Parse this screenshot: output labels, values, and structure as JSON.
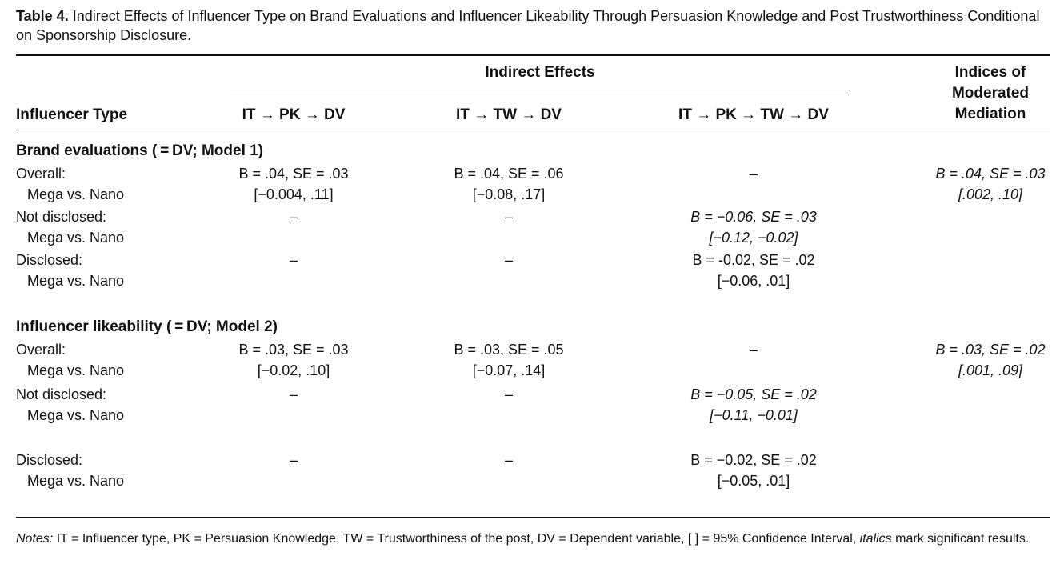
{
  "caption": {
    "label": "Table 4.",
    "text": "Indirect Effects of Influencer Type on Brand Evaluations and Influencer Likeability Through Persuasion Knowledge and Post Trustworthiness Conditional on Sponsorship Disclosure."
  },
  "header": {
    "group_label": "Indirect Effects",
    "row_header": "Influencer Type",
    "col1": "IT → PK → DV",
    "col2": "IT → TW → DV",
    "col3": "IT → PK → TW → DV",
    "col4_line1": "Indices of",
    "col4_line2": "Moderated",
    "col4_line3": "Mediation"
  },
  "section1": {
    "title": "Brand evaluations ( = DV; Model 1)",
    "overall_label": "Overall:",
    "overall_sub": "Mega vs. Nano",
    "overall_c1_b": "B = .04, SE = .03",
    "overall_c1_ci": "[−0.004, .11]",
    "overall_c2_b": "B = .04, SE = .06",
    "overall_c2_ci": "[−0.08, .17]",
    "overall_c3": "–",
    "overall_c4_b": "B = .04, SE = .03",
    "overall_c4_ci": "[.002, .10]",
    "notdisc_label": "Not disclosed:",
    "notdisc_sub": "Mega vs. Nano",
    "notdisc_c1": "–",
    "notdisc_c2": "–",
    "notdisc_c3_b": "B = −0.06, SE = .03",
    "notdisc_c3_ci": "[−0.12, −0.02]",
    "disc_label": "Disclosed:",
    "disc_sub": "Mega vs. Nano",
    "disc_c1": "–",
    "disc_c2": "–",
    "disc_c3_b": "B = -0.02, SE = .02",
    "disc_c3_ci": "[−0.06, .01]"
  },
  "section2": {
    "title": "Influencer likeability ( = DV; Model 2)",
    "overall_label": "Overall:",
    "overall_sub": "Mega vs. Nano",
    "overall_c1_b": "B = .03, SE = .03",
    "overall_c1_ci": "[−0.02, .10]",
    "overall_c2_b": "B = .03, SE = .05",
    "overall_c2_ci": "[−0.07, .14]",
    "overall_c3": "–",
    "overall_c4_b": "B = .03, SE = .02",
    "overall_c4_ci": "[.001, .09]",
    "notdisc_label": "Not disclosed:",
    "notdisc_sub": "Mega vs. Nano",
    "notdisc_c1": "–",
    "notdisc_c2": "–",
    "notdisc_c3_b": "B = −0.05, SE = .02",
    "notdisc_c3_ci": "[−0.11, −0.01]",
    "disc_label": "Disclosed:",
    "disc_sub": "Mega vs. Nano",
    "disc_c1": "–",
    "disc_c2": "–",
    "disc_c3_b": "B = −0.02, SE = .02",
    "disc_c3_ci": "[−0.05, .01]"
  },
  "notes": {
    "label": "Notes:",
    "text_a": " IT = Influencer type, PK = Persuasion Knowledge, TW = Trustworthiness of the post, DV = Dependent variable, [ ] = 95% Confidence Interval, ",
    "italics_word": "italics",
    "text_b": " mark significant results."
  }
}
